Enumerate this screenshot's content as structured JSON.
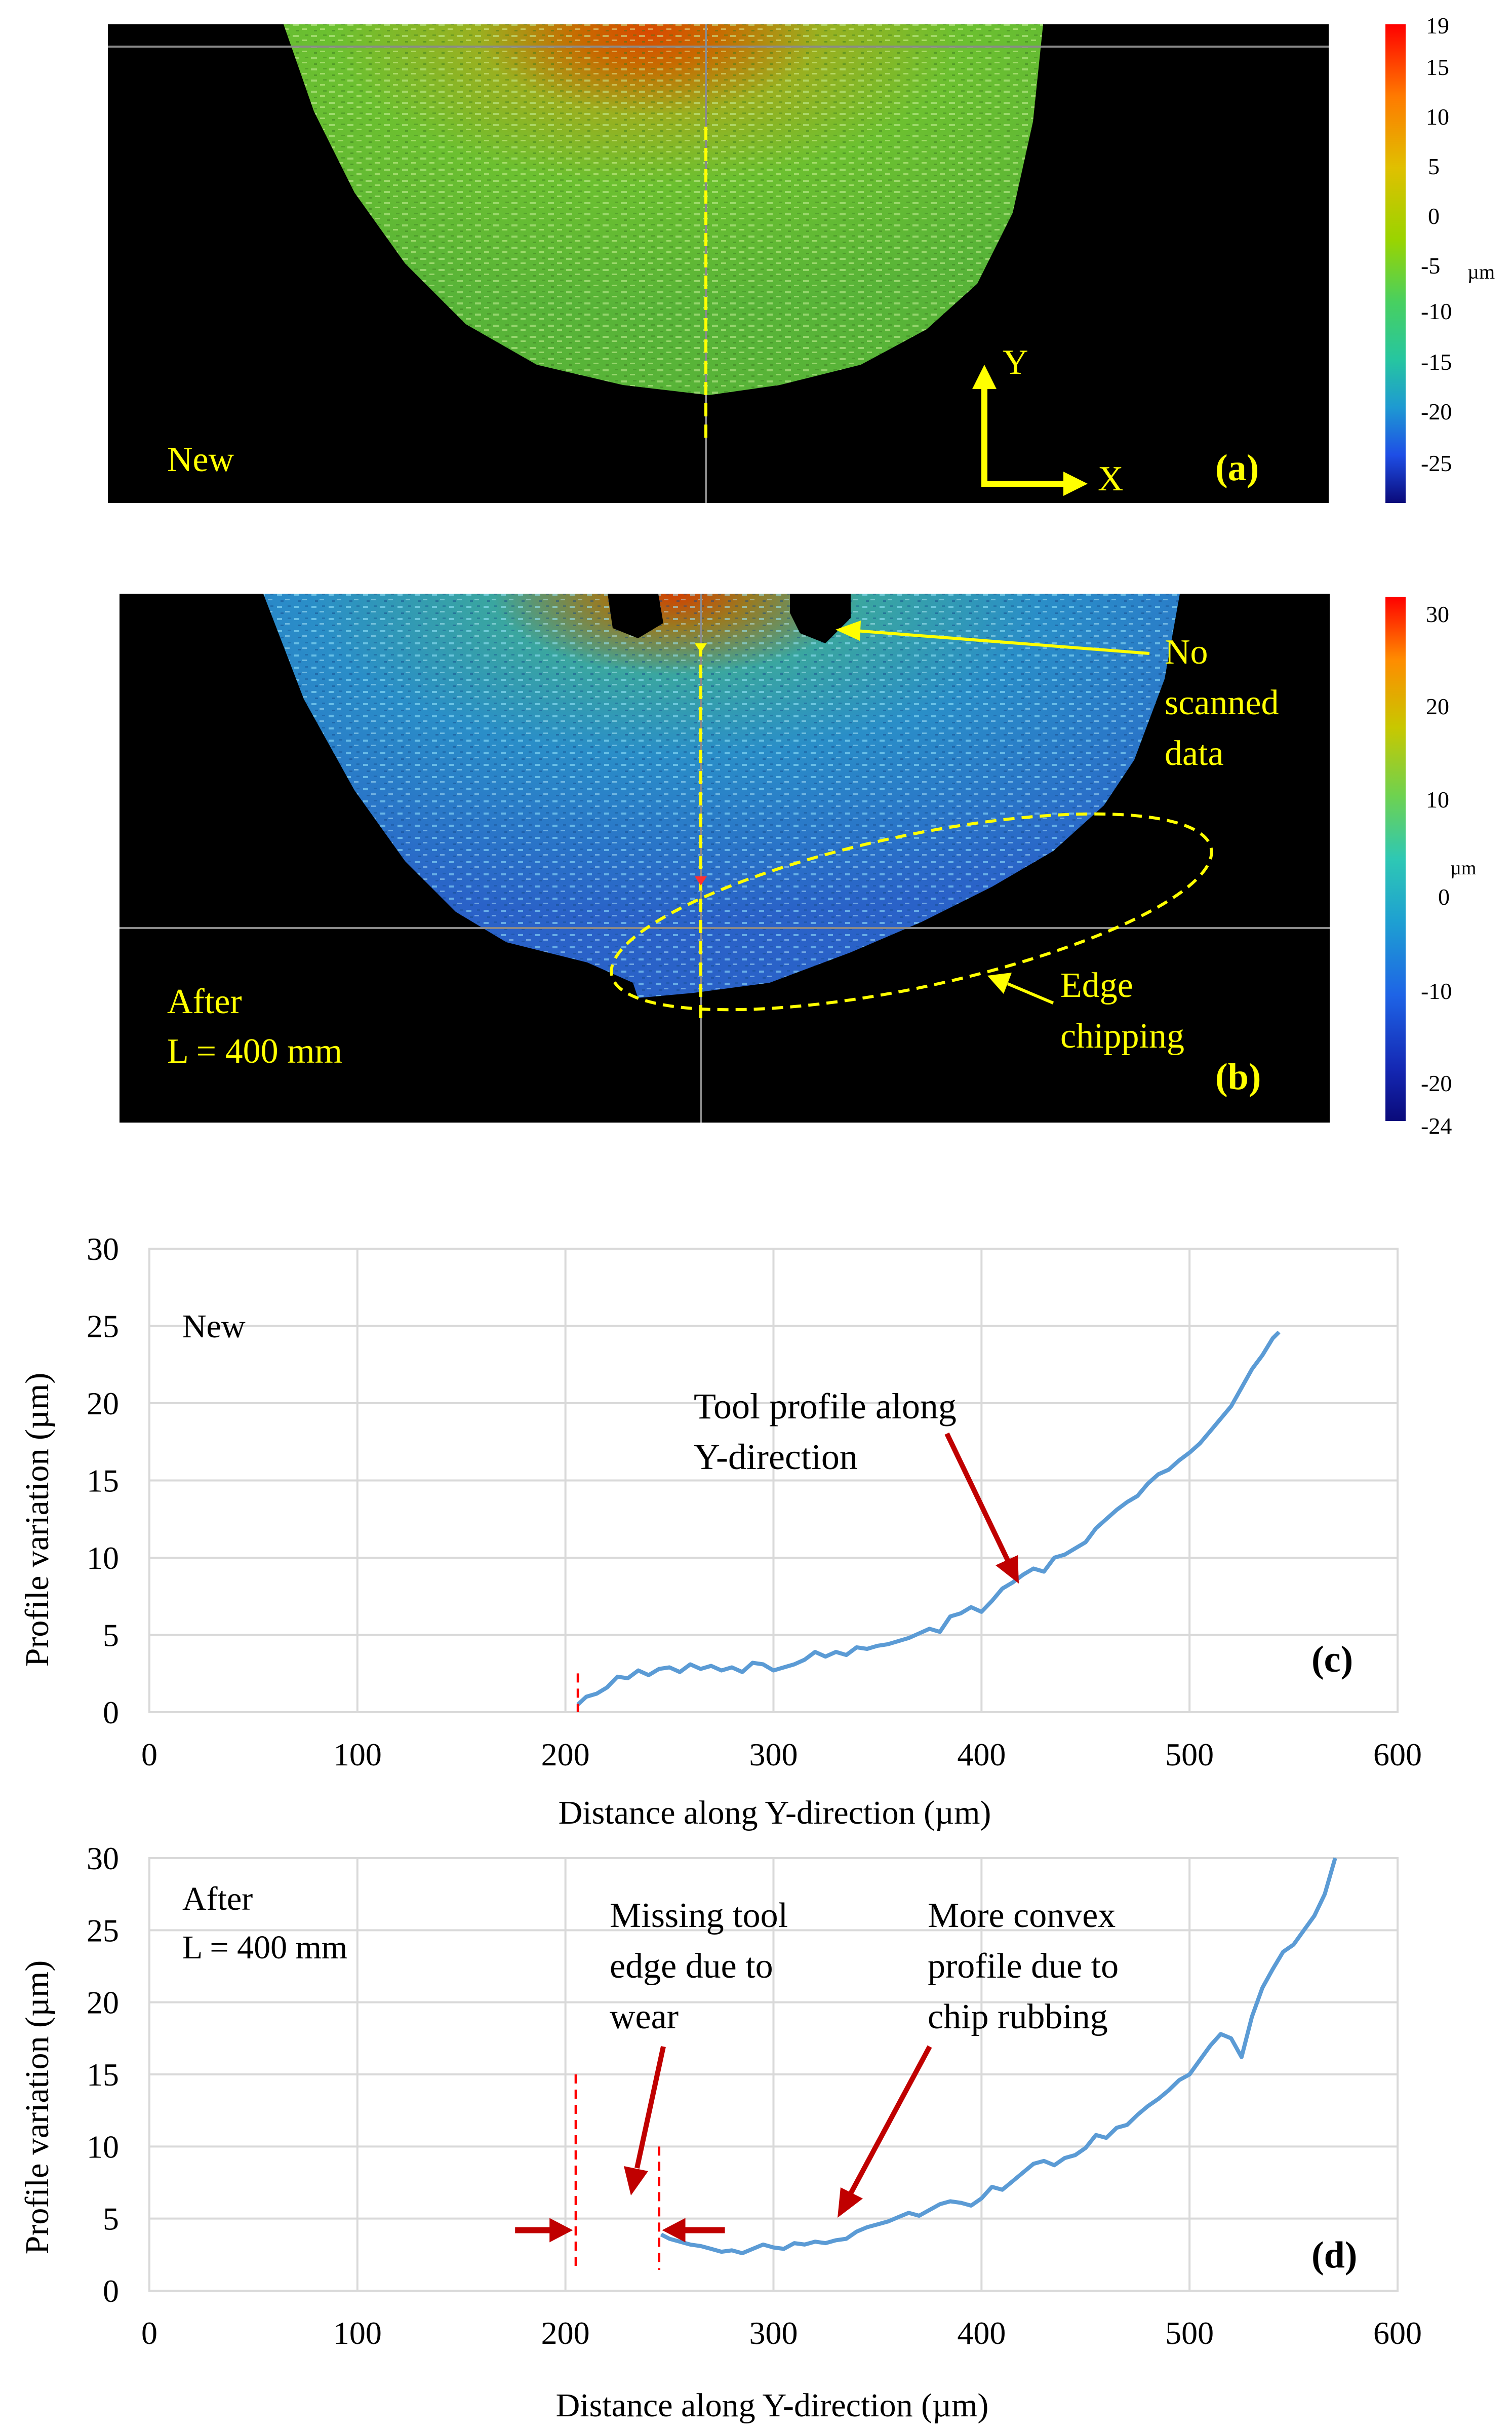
{
  "panels": {
    "a": {
      "label": "(a)",
      "state": "New",
      "axes": {
        "y": "Y",
        "x": "X"
      },
      "colorbar": {
        "unit": "µm",
        "ticks": [
          "19",
          "15",
          "10",
          "5",
          "0",
          "-5",
          "-10",
          "-15",
          "-20",
          "-25"
        ],
        "colors": [
          "#ff0000",
          "#ff8c00",
          "#e5c000",
          "#a6d400",
          "#5ad646",
          "#28c890",
          "#1ea6c8",
          "#1f6ee6",
          "#1630c8",
          "#0a0a7a"
        ]
      }
    },
    "b": {
      "label": "(b)",
      "state_line1": "After",
      "state_line2": "L = 400  mm",
      "note_no_scan": [
        "No",
        "scanned",
        "data"
      ],
      "note_chipping": [
        "Edge",
        "chipping"
      ],
      "colorbar": {
        "unit": "µm",
        "ticks": [
          "30",
          "20",
          "10",
          "0",
          "-10",
          "-20",
          "-24"
        ],
        "colors": [
          "#ff0000",
          "#ff8c00",
          "#d2c800",
          "#6ed250",
          "#2ec8b4",
          "#1ea0d2",
          "#1e64e6",
          "#1428b4",
          "#0a0a7a"
        ]
      }
    }
  },
  "colors": {
    "annotation_yellow": "#ffff00",
    "annotation_red": "#c00000",
    "series_blue": "#5b9bd5",
    "grid": "#d9d9d9"
  },
  "chart_data": [
    {
      "type": "line",
      "panel_label": "(c)",
      "state": "New",
      "xlabel": "Distance along Y-direction  (µm)",
      "ylabel": "Profile  variation (µm)",
      "xlim": [
        0,
        600
      ],
      "ylim": [
        0,
        30
      ],
      "x_ticks": [
        "0",
        "100",
        "200",
        "300",
        "400",
        "500",
        "600"
      ],
      "y_ticks": [
        "0",
        "5",
        "10",
        "15",
        "20",
        "25",
        "30"
      ],
      "grid": true,
      "annotation": [
        "Tool profile along",
        "Y-direction"
      ],
      "series": [
        {
          "name": "Tool profile along Y-direction",
          "x": [
            206,
            210,
            215,
            220,
            225,
            230,
            235,
            240,
            245,
            250,
            255,
            260,
            265,
            270,
            275,
            280,
            285,
            290,
            295,
            300,
            305,
            310,
            315,
            320,
            325,
            330,
            335,
            340,
            345,
            350,
            355,
            360,
            365,
            370,
            375,
            380,
            385,
            390,
            395,
            400,
            405,
            410,
            415,
            420,
            425,
            430,
            435,
            440,
            445,
            450,
            455,
            460,
            465,
            470,
            475,
            480,
            485,
            490,
            495,
            500,
            505,
            510,
            515,
            520,
            525,
            530,
            535,
            540,
            543
          ],
          "y": [
            0.5,
            1.0,
            1.2,
            1.6,
            2.3,
            2.2,
            2.7,
            2.4,
            2.8,
            2.9,
            2.6,
            3.1,
            2.8,
            3.0,
            2.7,
            2.9,
            2.6,
            3.2,
            3.1,
            2.7,
            2.9,
            3.1,
            3.4,
            3.9,
            3.6,
            3.9,
            3.7,
            4.2,
            4.1,
            4.3,
            4.4,
            4.6,
            4.8,
            5.1,
            5.4,
            5.2,
            6.2,
            6.4,
            6.8,
            6.5,
            7.2,
            8.0,
            8.4,
            8.9,
            9.3,
            9.1,
            10.0,
            10.2,
            10.6,
            11.0,
            11.9,
            12.5,
            13.1,
            13.6,
            14.0,
            14.8,
            15.4,
            15.7,
            16.3,
            16.8,
            17.4,
            18.2,
            19.0,
            19.8,
            21.0,
            22.2,
            23.1,
            24.2,
            24.6
          ]
        }
      ]
    },
    {
      "type": "line",
      "panel_label": "(d)",
      "state_line1": "After",
      "state_line2": "L = 400  mm",
      "xlabel": "Distance along Y-direction  (µm)",
      "ylabel": "Profile  variation (µm)",
      "xlim": [
        0,
        600
      ],
      "ylim": [
        0,
        30
      ],
      "x_ticks": [
        "0",
        "100",
        "200",
        "300",
        "400",
        "500",
        "600"
      ],
      "y_ticks": [
        "0",
        "5",
        "10",
        "15",
        "20",
        "25",
        "30"
      ],
      "grid": true,
      "annotation_missing": [
        "Missing tool",
        "edge due to",
        "wear"
      ],
      "annotation_convex": [
        "More convex",
        "profile  due to",
        "chip rubbing"
      ],
      "missing_edge_markers_x": [
        205,
        245
      ],
      "series": [
        {
          "name": "Tool profile along Y-direction",
          "x": [
            246,
            250,
            255,
            260,
            265,
            270,
            275,
            280,
            285,
            290,
            295,
            300,
            305,
            310,
            315,
            320,
            325,
            330,
            335,
            340,
            345,
            350,
            355,
            360,
            365,
            370,
            375,
            380,
            385,
            390,
            395,
            400,
            405,
            410,
            415,
            420,
            425,
            430,
            435,
            440,
            445,
            450,
            455,
            460,
            465,
            470,
            475,
            480,
            485,
            490,
            495,
            500,
            505,
            510,
            515,
            520,
            525,
            530,
            535,
            540,
            545,
            550,
            555,
            560,
            565,
            570
          ],
          "y": [
            3.9,
            3.6,
            3.4,
            3.2,
            3.1,
            2.9,
            2.7,
            2.8,
            2.6,
            2.9,
            3.2,
            3.0,
            2.9,
            3.3,
            3.2,
            3.4,
            3.3,
            3.5,
            3.6,
            4.1,
            4.4,
            4.6,
            4.8,
            5.1,
            5.4,
            5.2,
            5.6,
            6.0,
            6.2,
            6.1,
            5.9,
            6.4,
            7.2,
            7.0,
            7.6,
            8.2,
            8.8,
            9.0,
            8.7,
            9.2,
            9.4,
            9.9,
            10.8,
            10.6,
            11.3,
            11.5,
            12.2,
            12.8,
            13.3,
            13.9,
            14.6,
            15.0,
            16.0,
            17.0,
            17.8,
            17.5,
            16.2,
            19.0,
            21.0,
            22.3,
            23.5,
            24.0,
            25.0,
            26.0,
            27.5,
            30.0
          ]
        }
      ]
    }
  ]
}
